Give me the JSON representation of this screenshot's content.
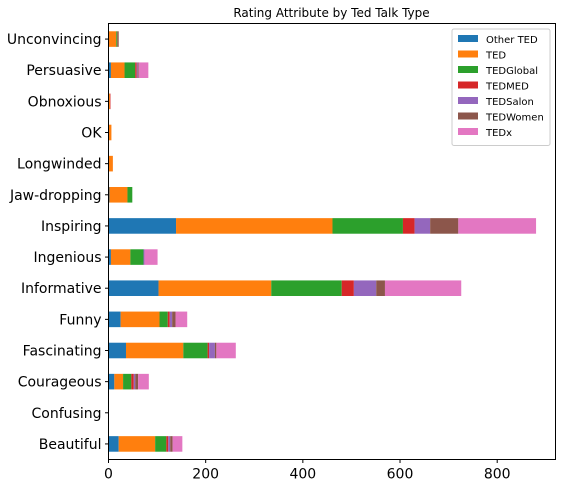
{
  "chart_data": {
    "type": "bar",
    "orientation": "horizontal",
    "stacked": true,
    "title": "Rating Attribute by Ted Talk Type",
    "xlabel": "",
    "ylabel": "",
    "xlim": [
      0,
      920
    ],
    "xticks": [
      0,
      200,
      400,
      600,
      800
    ],
    "grid": false,
    "legend_position": "top-right",
    "categories": [
      "Unconvincing",
      "Persuasive",
      "Obnoxious",
      "OK",
      "Longwinded",
      "Jaw-dropping",
      "Inspiring",
      "Ingenious",
      "Informative",
      "Funny",
      "Fascinating",
      "Courageous",
      "Confusing",
      "Beautiful"
    ],
    "series": [
      {
        "name": "Other TED",
        "color": "#1f77b4",
        "values": [
          1,
          5,
          0,
          0,
          0,
          2,
          139,
          5,
          103,
          25,
          36,
          12,
          0,
          21
        ]
      },
      {
        "name": "TED",
        "color": "#ff7f0e",
        "values": [
          15,
          28,
          3,
          6,
          9,
          37,
          322,
          40,
          232,
          80,
          118,
          18,
          0,
          75
        ]
      },
      {
        "name": "TEDGlobal",
        "color": "#2ca02c",
        "values": [
          2,
          22,
          0,
          0,
          0,
          10,
          145,
          27,
          145,
          17,
          50,
          17,
          0,
          23
        ]
      },
      {
        "name": "TEDMED",
        "color": "#d62728",
        "values": [
          0,
          3,
          1,
          0,
          0,
          0,
          24,
          0,
          25,
          4,
          3,
          5,
          0,
          4
        ]
      },
      {
        "name": "TEDSalon",
        "color": "#9467bd",
        "values": [
          0,
          2,
          0,
          0,
          0,
          0,
          32,
          2,
          46,
          5,
          12,
          3,
          0,
          4
        ]
      },
      {
        "name": "TEDWomen",
        "color": "#8c564b",
        "values": [
          3,
          2,
          0,
          0,
          0,
          0,
          58,
          0,
          18,
          7,
          3,
          6,
          0,
          5
        ]
      },
      {
        "name": "TEDx",
        "color": "#e377c2",
        "values": [
          0,
          20,
          0,
          0,
          0,
          0,
          160,
          27,
          157,
          24,
          40,
          22,
          0,
          20
        ]
      }
    ]
  }
}
